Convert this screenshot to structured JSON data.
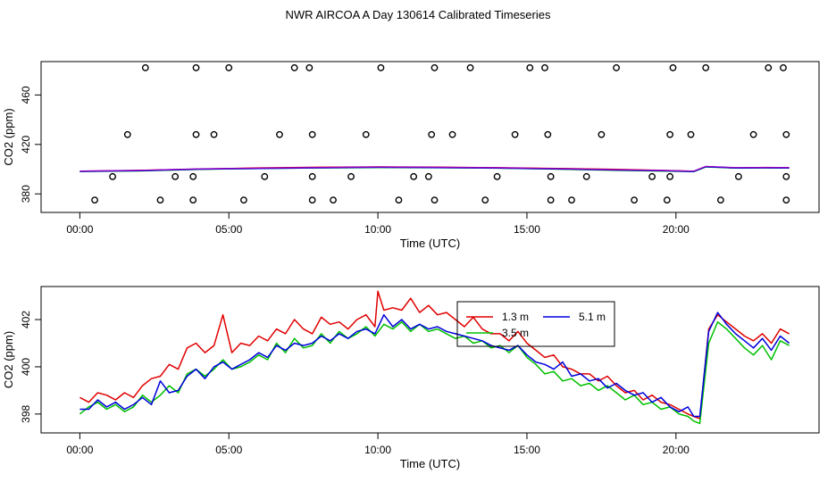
{
  "page_title": "NWR AIRCOA A  Day 130614  Calibrated Timeseries",
  "colors": {
    "red": "#e00000",
    "green": "#00c000",
    "blue": "#0000dd",
    "purple": "#9900cc"
  },
  "chart_data": [
    {
      "type": "line",
      "panel": "top",
      "xlabel": "Time (UTC)",
      "ylabel": "CO2 (ppm)",
      "xlim": [
        -1.3,
        24.8
      ],
      "ylim": [
        365,
        487
      ],
      "x_ticks": [
        0,
        5,
        10,
        15,
        20
      ],
      "x_tick_labels": [
        "00:00",
        "05:00",
        "10:00",
        "15:00",
        "20:00"
      ],
      "y_ticks": [
        380,
        420,
        460
      ],
      "y_tick_labels": [
        "380",
        "420",
        "460"
      ],
      "series": [
        {
          "name": "1.3 m",
          "color": "red",
          "x": [
            0,
            2,
            4,
            6,
            8,
            10,
            12,
            14,
            16,
            18,
            19.5,
            20.6,
            21,
            22,
            23,
            23.8
          ],
          "y": [
            398.3,
            399,
            400,
            401,
            401.5,
            401.8,
            401.6,
            401.2,
            400.6,
            399.8,
            399,
            398.3,
            402,
            401,
            401.4,
            401.2
          ]
        },
        {
          "name": "3.5 m",
          "color": "green",
          "x": [
            0,
            2,
            4,
            6,
            8,
            10,
            12,
            14,
            16,
            18,
            19.5,
            20.6,
            21,
            22,
            23,
            23.8
          ],
          "y": [
            398.1,
            398.6,
            399.9,
            400.5,
            401,
            401.3,
            401.2,
            400.8,
            400,
            399,
            398.5,
            398,
            401.8,
            400.9,
            401,
            400.9
          ]
        },
        {
          "name": "5.1 m",
          "color": "blue",
          "x": [
            0,
            2,
            4,
            6,
            8,
            10,
            12,
            14,
            16,
            18,
            19.5,
            20.6,
            21,
            22,
            23,
            23.8
          ],
          "y": [
            398.2,
            398.8,
            400,
            400.6,
            401.1,
            401.5,
            401.3,
            400.9,
            400.2,
            399.3,
            398.7,
            398.1,
            402,
            401,
            401.1,
            401
          ]
        }
      ],
      "calibration_points": {
        "x": [
          0.5,
          1.1,
          1.6,
          2.2,
          2.7,
          3.2,
          3.8,
          3.8,
          3.9,
          3.9,
          4.5,
          5.0,
          5.5,
          6.2,
          6.7,
          7.2,
          7.7,
          7.8,
          7.8,
          7.8,
          8.5,
          9.1,
          9.6,
          10.1,
          10.7,
          11.2,
          11.7,
          11.8,
          11.9,
          11.9,
          12.5,
          13.1,
          13.6,
          14.0,
          14.6,
          15.1,
          15.6,
          15.7,
          15.8,
          15.8,
          16.5,
          17.0,
          17.5,
          18.0,
          18.6,
          19.2,
          19.7,
          19.8,
          19.8,
          19.9,
          20.5,
          21.0,
          21.5,
          22.1,
          22.6,
          23.1,
          23.6,
          23.7,
          23.7,
          23.7
        ],
        "y": [
          375,
          394,
          428,
          482,
          375,
          394,
          375,
          394,
          428,
          482,
          428,
          482,
          375,
          394,
          428,
          482,
          482,
          428,
          394,
          375,
          375,
          394,
          428,
          482,
          375,
          394,
          394,
          428,
          482,
          375,
          428,
          482,
          375,
          394,
          428,
          482,
          482,
          428,
          394,
          375,
          375,
          394,
          428,
          482,
          375,
          394,
          375,
          394,
          428,
          482,
          428,
          482,
          375,
          394,
          428,
          482,
          482,
          428,
          394,
          375
        ]
      }
    },
    {
      "type": "line",
      "panel": "bottom",
      "xlabel": "Time (UTC)",
      "ylabel": "CO2 (ppm)",
      "xlim": [
        -1.3,
        24.8
      ],
      "ylim": [
        397.2,
        403.4
      ],
      "x_ticks": [
        0,
        5,
        10,
        15,
        20
      ],
      "x_tick_labels": [
        "00:00",
        "05:00",
        "10:00",
        "15:00",
        "20:00"
      ],
      "y_ticks": [
        398,
        400,
        402
      ],
      "y_tick_labels": [
        "398",
        "400",
        "402"
      ],
      "legend": {
        "position": "top-center-right",
        "entries": [
          "1.3 m",
          "5.1 m",
          "3.5 m"
        ]
      },
      "series": [
        {
          "name": "1.3 m",
          "color": "red",
          "x": [
            0,
            0.3,
            0.6,
            0.9,
            1.2,
            1.5,
            1.8,
            2.1,
            2.4,
            2.7,
            3.0,
            3.3,
            3.6,
            3.9,
            4.2,
            4.5,
            4.8,
            5.1,
            5.4,
            5.7,
            6.0,
            6.3,
            6.6,
            6.9,
            7.2,
            7.5,
            7.8,
            8.1,
            8.4,
            8.7,
            9.0,
            9.3,
            9.6,
            9.9,
            10.0,
            10.2,
            10.5,
            10.8,
            11.1,
            11.4,
            11.7,
            12.0,
            12.3,
            12.6,
            12.9,
            13.2,
            13.5,
            13.8,
            14.1,
            14.4,
            14.7,
            15.0,
            15.3,
            15.6,
            15.9,
            16.2,
            16.5,
            16.8,
            17.1,
            17.4,
            17.7,
            18.0,
            18.3,
            18.6,
            18.9,
            19.2,
            19.5,
            19.8,
            20.1,
            20.4,
            20.6,
            20.8,
            21.1,
            21.4,
            21.7,
            22.0,
            22.3,
            22.6,
            22.9,
            23.2,
            23.5,
            23.8
          ],
          "y": [
            398.7,
            398.5,
            398.9,
            398.8,
            398.6,
            398.9,
            398.7,
            399.2,
            399.5,
            399.6,
            400.1,
            399.9,
            400.8,
            401.0,
            400.6,
            400.9,
            402.2,
            400.6,
            401.0,
            400.9,
            401.3,
            401.1,
            401.6,
            401.4,
            402.0,
            401.6,
            401.4,
            402.1,
            401.8,
            401.9,
            401.6,
            402.0,
            402.2,
            401.7,
            403.2,
            402.4,
            402.5,
            402.4,
            402.9,
            402.3,
            402.6,
            402.2,
            402.3,
            402.0,
            401.7,
            402.1,
            401.6,
            401.4,
            401.4,
            401.1,
            401.5,
            401.0,
            400.7,
            400.4,
            400.5,
            400.0,
            399.9,
            399.7,
            399.7,
            399.4,
            399.6,
            399.2,
            398.9,
            399.0,
            398.6,
            398.8,
            398.5,
            398.4,
            398.2,
            398.0,
            397.9,
            397.8,
            401.6,
            402.2,
            401.9,
            401.6,
            401.3,
            401.1,
            401.4,
            401.0,
            401.6,
            401.4
          ]
        },
        {
          "name": "3.5 m",
          "color": "green",
          "x": [
            0,
            0.3,
            0.6,
            0.9,
            1.2,
            1.5,
            1.8,
            2.1,
            2.4,
            2.7,
            3.0,
            3.3,
            3.6,
            3.9,
            4.2,
            4.5,
            4.8,
            5.1,
            5.4,
            5.7,
            6.0,
            6.3,
            6.6,
            6.9,
            7.2,
            7.5,
            7.8,
            8.1,
            8.4,
            8.7,
            9.0,
            9.3,
            9.6,
            9.9,
            10.2,
            10.5,
            10.8,
            11.1,
            11.4,
            11.7,
            12.0,
            12.3,
            12.6,
            12.9,
            13.2,
            13.5,
            13.8,
            14.1,
            14.4,
            14.7,
            15.0,
            15.3,
            15.6,
            15.9,
            16.2,
            16.5,
            16.8,
            17.1,
            17.4,
            17.7,
            18.0,
            18.3,
            18.6,
            18.9,
            19.2,
            19.5,
            19.8,
            20.1,
            20.4,
            20.6,
            20.8,
            21.1,
            21.4,
            21.7,
            22.0,
            22.3,
            22.6,
            22.9,
            23.2,
            23.5,
            23.8
          ],
          "y": [
            398.0,
            398.3,
            398.5,
            398.2,
            398.4,
            398.1,
            398.3,
            398.8,
            398.5,
            398.8,
            399.2,
            398.9,
            399.7,
            399.9,
            399.6,
            399.9,
            400.3,
            399.9,
            400.0,
            400.2,
            400.5,
            400.3,
            401.0,
            400.6,
            401.2,
            400.8,
            400.9,
            401.4,
            401.0,
            401.5,
            401.2,
            401.4,
            401.7,
            401.3,
            401.8,
            401.6,
            401.9,
            401.5,
            401.8,
            401.5,
            401.6,
            401.4,
            401.2,
            401.3,
            401.0,
            401.1,
            400.8,
            400.9,
            400.6,
            400.9,
            400.4,
            400.1,
            399.7,
            399.8,
            399.4,
            399.5,
            399.2,
            399.3,
            399.0,
            399.2,
            398.9,
            398.6,
            398.8,
            398.4,
            398.5,
            398.2,
            398.3,
            398.0,
            397.9,
            397.7,
            397.6,
            401.0,
            401.9,
            401.6,
            401.2,
            400.8,
            400.5,
            400.9,
            400.3,
            401.1,
            400.9
          ]
        },
        {
          "name": "5.1 m",
          "color": "blue",
          "x": [
            0,
            0.3,
            0.6,
            0.9,
            1.2,
            1.5,
            1.8,
            2.1,
            2.4,
            2.7,
            3.0,
            3.3,
            3.6,
            3.9,
            4.2,
            4.5,
            4.8,
            5.1,
            5.4,
            5.7,
            6.0,
            6.3,
            6.6,
            6.9,
            7.2,
            7.5,
            7.8,
            8.1,
            8.4,
            8.7,
            9.0,
            9.3,
            9.6,
            9.9,
            10.2,
            10.5,
            10.8,
            11.1,
            11.4,
            11.7,
            12.0,
            12.3,
            12.6,
            12.9,
            13.2,
            13.5,
            13.8,
            14.1,
            14.4,
            14.7,
            15.0,
            15.3,
            15.6,
            15.9,
            16.2,
            16.5,
            16.8,
            17.1,
            17.4,
            17.7,
            18.0,
            18.3,
            18.6,
            18.9,
            19.2,
            19.5,
            19.8,
            20.1,
            20.4,
            20.6,
            20.8,
            21.1,
            21.4,
            21.7,
            22.0,
            22.3,
            22.6,
            22.9,
            23.2,
            23.5,
            23.8
          ],
          "y": [
            398.2,
            398.2,
            398.6,
            398.3,
            398.5,
            398.2,
            398.4,
            398.7,
            398.4,
            399.4,
            398.9,
            399.0,
            399.6,
            399.9,
            399.5,
            400.0,
            400.2,
            399.9,
            400.1,
            400.3,
            400.6,
            400.4,
            400.9,
            400.7,
            401.0,
            400.9,
            401.0,
            401.3,
            401.1,
            401.4,
            401.2,
            401.5,
            401.6,
            401.4,
            402.2,
            401.7,
            402.0,
            401.6,
            401.8,
            401.6,
            401.7,
            401.5,
            401.4,
            401.3,
            401.2,
            401.1,
            400.9,
            400.8,
            400.7,
            400.9,
            400.5,
            400.2,
            400.1,
            399.9,
            400.2,
            399.6,
            399.7,
            399.4,
            399.5,
            399.1,
            399.3,
            399.0,
            398.8,
            398.9,
            398.5,
            398.7,
            398.3,
            398.1,
            398.3,
            397.9,
            397.9,
            401.5,
            402.3,
            401.8,
            401.4,
            401.1,
            400.8,
            401.2,
            400.7,
            401.3,
            401.0
          ]
        }
      ]
    }
  ]
}
